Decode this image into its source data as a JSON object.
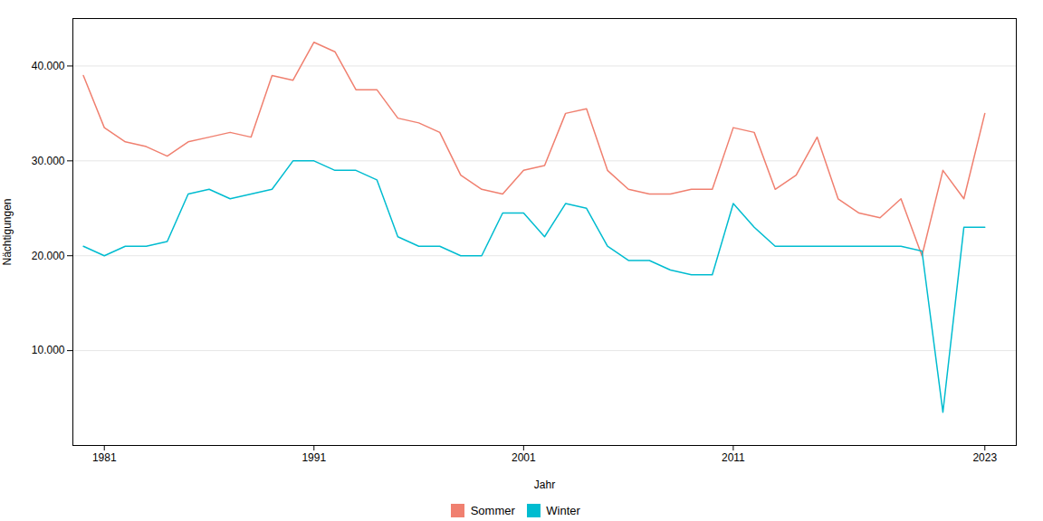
{
  "chart_data": {
    "type": "line",
    "xlabel": "Jahr",
    "ylabel": "Nächtigungen",
    "x": [
      1980,
      1981,
      1982,
      1983,
      1984,
      1985,
      1986,
      1987,
      1988,
      1989,
      1990,
      1991,
      1992,
      1993,
      1994,
      1995,
      1996,
      1997,
      1998,
      1999,
      2000,
      2001,
      2002,
      2003,
      2004,
      2005,
      2006,
      2007,
      2008,
      2009,
      2010,
      2011,
      2012,
      2013,
      2014,
      2015,
      2016,
      2017,
      2018,
      2019,
      2020,
      2021,
      2022,
      2023
    ],
    "series": [
      {
        "name": "Sommer",
        "color": "#F08070",
        "values": [
          39000,
          33500,
          32000,
          31500,
          30500,
          32000,
          32500,
          33000,
          32500,
          39000,
          38500,
          42500,
          41500,
          37500,
          37500,
          34500,
          34000,
          33000,
          28500,
          27000,
          26500,
          29000,
          29500,
          35000,
          35500,
          29000,
          27000,
          26500,
          26500,
          27000,
          27000,
          33500,
          33000,
          27000,
          28500,
          32500,
          26000,
          24500,
          24000,
          26000,
          20000,
          29000,
          26000,
          35000
        ]
      },
      {
        "name": "Winter",
        "color": "#00BCD0",
        "values": [
          21000,
          20000,
          21000,
          21000,
          21500,
          26500,
          27000,
          26000,
          26500,
          27000,
          30000,
          30000,
          29000,
          29000,
          28000,
          22000,
          21000,
          21000,
          20000,
          20000,
          24500,
          24500,
          22000,
          25500,
          25000,
          21000,
          19500,
          19500,
          18500,
          18000,
          18000,
          25500,
          23000,
          21000,
          21000,
          21000,
          21000,
          21000,
          21000,
          21000,
          20500,
          3500,
          23000,
          23000
        ]
      }
    ],
    "xlim": [
      1979.5,
      2024.5
    ],
    "xticks": [
      1981,
      1991,
      2001,
      2011,
      2023
    ],
    "ylim": [
      0,
      45000
    ],
    "yticks": [
      {
        "value": 10000,
        "label": "10.000"
      },
      {
        "value": 20000,
        "label": "20.000"
      },
      {
        "value": 30000,
        "label": "30.000"
      },
      {
        "value": 40000,
        "label": "40.000"
      }
    ],
    "grid": true,
    "legend": "bottom"
  }
}
